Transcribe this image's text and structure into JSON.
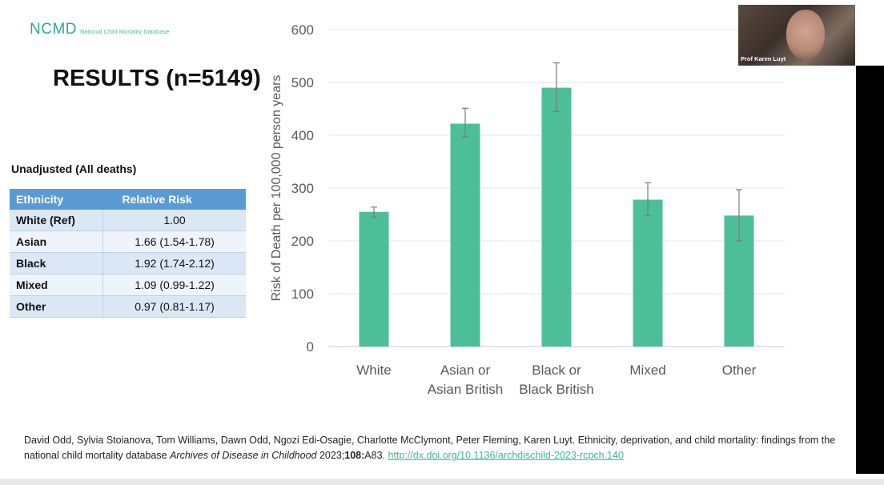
{
  "logo": {
    "main": "NCMD",
    "sub": "National Child Mortality Database"
  },
  "heading": "RESULTS (n=5149)",
  "table_title": "Unadjusted (All deaths)",
  "table": {
    "headers": [
      "Ethnicity",
      "Relative Risk"
    ],
    "rows": [
      [
        "White (Ref)",
        "1.00"
      ],
      [
        "Asian",
        "1.66 (1.54-1.78)"
      ],
      [
        "Black",
        "1.92 (1.74-2.12)"
      ],
      [
        "Mixed",
        "1.09 (0.99-1.22)"
      ],
      [
        "Other",
        "0.97 (0.81-1.17)"
      ]
    ]
  },
  "chart_data": {
    "type": "bar",
    "categories": [
      [
        "White"
      ],
      [
        "Asian or",
        "Asian British"
      ],
      [
        "Black or",
        "Black British"
      ],
      [
        "Mixed"
      ],
      [
        "Other"
      ]
    ],
    "values": [
      255,
      422,
      490,
      278,
      248
    ],
    "error_low": [
      245,
      397,
      445,
      248,
      200
    ],
    "error_high": [
      264,
      451,
      537,
      310,
      297
    ],
    "ylabel": "Risk of Death per 100,000 person years",
    "ylim": [
      0,
      600
    ],
    "yticks": [
      0,
      100,
      200,
      300,
      400,
      500,
      600
    ],
    "grid": true,
    "bar_color": "#4dbf98"
  },
  "citation": {
    "authors": "David Odd, Sylvia Stoianova, Tom Williams, Dawn Odd, Ngozi Edi-Osagie, Charlotte McClymont, Peter Fleming, Karen Luyt.",
    "title": "Ethnicity, deprivation, and child mortality: findings from the national child mortality database",
    "journal": "Archives of Disease in Childhood",
    "year": "2023;",
    "volume": "108:",
    "pages": "A83.",
    "link": "http://dx.doi.org/10.1136/archdischild-2023-rcpch.140"
  },
  "webcam": {
    "label": "Prof Karen Luyt"
  }
}
